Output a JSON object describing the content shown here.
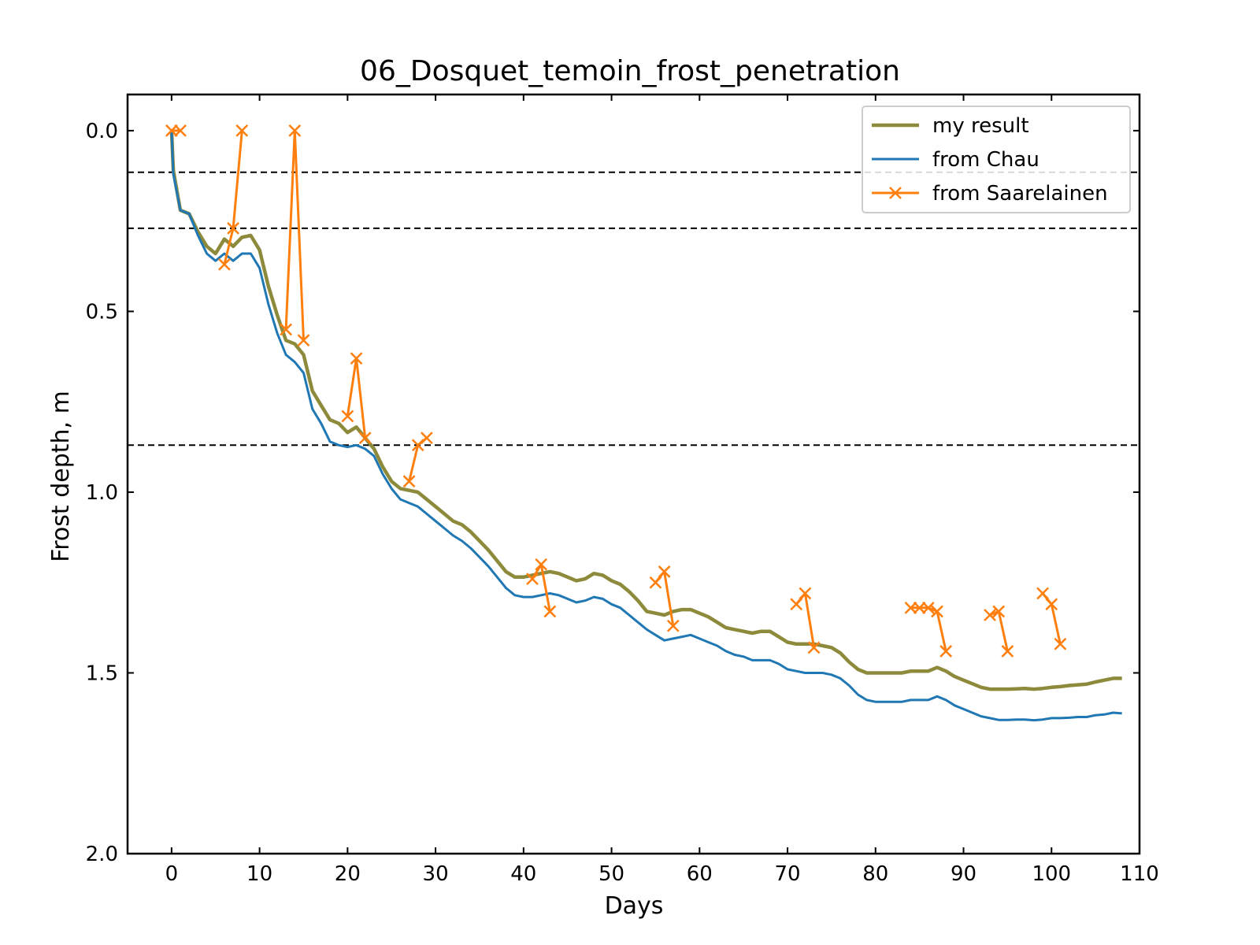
{
  "chart_data": {
    "type": "line",
    "title": "06_Dosquet_temoin_frost_penetration",
    "xlabel": "Days",
    "ylabel": "Frost depth, m",
    "xlim": [
      -5,
      110
    ],
    "ylim": [
      2.0,
      -0.1
    ],
    "y_inverted": true,
    "xticks": [
      0,
      10,
      20,
      30,
      40,
      50,
      60,
      70,
      80,
      90,
      100,
      110
    ],
    "yticks": [
      0.0,
      0.5,
      1.0,
      1.5,
      2.0
    ],
    "xtick_labels": [
      "0",
      "10",
      "20",
      "30",
      "40",
      "50",
      "60",
      "70",
      "80",
      "90",
      "100",
      "110"
    ],
    "ytick_labels": [
      "0.0",
      "0.5",
      "1.0",
      "1.5",
      "2.0"
    ],
    "grid": false,
    "legend_position": "top-right",
    "reference_lines": [
      0.115,
      0.27,
      0.87
    ],
    "series": [
      {
        "name": "my result",
        "color": "#8e8a3c",
        "marker": "none",
        "x": [
          0,
          0.2,
          1,
          2,
          3,
          4,
          5,
          6,
          7,
          8,
          9,
          10,
          11,
          12,
          13,
          14,
          15,
          16,
          17,
          18,
          19,
          20,
          21,
          22,
          23,
          24,
          25,
          26,
          27,
          28,
          29,
          30,
          31,
          32,
          33,
          34,
          35,
          36,
          37,
          38,
          39,
          40,
          41,
          42,
          43,
          44,
          45,
          46,
          47,
          48,
          49,
          50,
          51,
          52,
          53,
          54,
          55,
          56,
          57,
          58,
          59,
          60,
          61,
          62,
          63,
          64,
          65,
          66,
          67,
          68,
          69,
          70,
          71,
          72,
          73,
          74,
          75,
          76,
          77,
          78,
          79,
          80,
          81,
          82,
          83,
          84,
          85,
          86,
          87,
          88,
          89,
          90,
          91,
          92,
          93,
          94,
          95,
          96,
          97,
          98,
          99,
          100,
          101,
          102,
          103,
          104,
          105,
          106,
          107,
          108
        ],
        "y": [
          0.0,
          0.11,
          0.22,
          0.23,
          0.28,
          0.32,
          0.34,
          0.3,
          0.32,
          0.295,
          0.29,
          0.33,
          0.43,
          0.51,
          0.58,
          0.59,
          0.62,
          0.72,
          0.76,
          0.8,
          0.81,
          0.835,
          0.82,
          0.85,
          0.88,
          0.93,
          0.97,
          0.99,
          0.995,
          1.0,
          1.02,
          1.04,
          1.06,
          1.08,
          1.09,
          1.11,
          1.135,
          1.16,
          1.19,
          1.22,
          1.235,
          1.235,
          1.23,
          1.225,
          1.22,
          1.225,
          1.235,
          1.245,
          1.24,
          1.225,
          1.23,
          1.245,
          1.255,
          1.275,
          1.3,
          1.33,
          1.335,
          1.34,
          1.33,
          1.325,
          1.325,
          1.335,
          1.345,
          1.36,
          1.375,
          1.38,
          1.385,
          1.39,
          1.385,
          1.385,
          1.4,
          1.415,
          1.42,
          1.42,
          1.42,
          1.425,
          1.43,
          1.445,
          1.47,
          1.49,
          1.5,
          1.5,
          1.5,
          1.5,
          1.5,
          1.495,
          1.495,
          1.495,
          1.485,
          1.495,
          1.51,
          1.52,
          1.53,
          1.54,
          1.545,
          1.545,
          1.545,
          1.544,
          1.543,
          1.545,
          1.543,
          1.54,
          1.538,
          1.535,
          1.533,
          1.531,
          1.525,
          1.52,
          1.515,
          1.515
        ]
      },
      {
        "name": "from Chau",
        "color": "#1f77b4",
        "marker": "none",
        "x": [
          0,
          0.2,
          1,
          2,
          3,
          4,
          5,
          6,
          7,
          8,
          9,
          10,
          11,
          12,
          13,
          14,
          15,
          16,
          17,
          18,
          19,
          20,
          21,
          22,
          23,
          24,
          25,
          26,
          27,
          28,
          29,
          30,
          31,
          32,
          33,
          34,
          35,
          36,
          37,
          38,
          39,
          40,
          41,
          42,
          43,
          44,
          45,
          46,
          47,
          48,
          49,
          50,
          51,
          52,
          53,
          54,
          55,
          56,
          57,
          58,
          59,
          60,
          61,
          62,
          63,
          64,
          65,
          66,
          67,
          68,
          69,
          70,
          71,
          72,
          73,
          74,
          75,
          76,
          77,
          78,
          79,
          80,
          81,
          82,
          83,
          84,
          85,
          86,
          87,
          88,
          89,
          90,
          91,
          92,
          93,
          94,
          95,
          96,
          97,
          98,
          99,
          100,
          101,
          102,
          103,
          104,
          105,
          106,
          107,
          108
        ],
        "y": [
          0.0,
          0.12,
          0.22,
          0.23,
          0.29,
          0.34,
          0.36,
          0.34,
          0.36,
          0.34,
          0.34,
          0.38,
          0.48,
          0.56,
          0.62,
          0.64,
          0.67,
          0.77,
          0.81,
          0.86,
          0.87,
          0.875,
          0.87,
          0.88,
          0.9,
          0.95,
          0.99,
          1.02,
          1.03,
          1.04,
          1.06,
          1.08,
          1.1,
          1.12,
          1.135,
          1.155,
          1.18,
          1.205,
          1.235,
          1.265,
          1.285,
          1.29,
          1.29,
          1.285,
          1.28,
          1.285,
          1.295,
          1.305,
          1.3,
          1.29,
          1.295,
          1.31,
          1.32,
          1.34,
          1.36,
          1.38,
          1.395,
          1.41,
          1.405,
          1.4,
          1.395,
          1.405,
          1.415,
          1.425,
          1.44,
          1.45,
          1.455,
          1.465,
          1.465,
          1.465,
          1.475,
          1.49,
          1.495,
          1.5,
          1.5,
          1.5,
          1.505,
          1.515,
          1.535,
          1.56,
          1.575,
          1.58,
          1.58,
          1.58,
          1.58,
          1.575,
          1.575,
          1.575,
          1.565,
          1.575,
          1.59,
          1.6,
          1.61,
          1.62,
          1.625,
          1.63,
          1.63,
          1.629,
          1.629,
          1.631,
          1.629,
          1.625,
          1.625,
          1.624,
          1.622,
          1.622,
          1.617,
          1.615,
          1.61,
          1.612
        ]
      },
      {
        "name": "from Saarelainen",
        "color": "#ff7f0e",
        "marker": "x",
        "segments": [
          {
            "x": [
              0,
              1
            ],
            "y": [
              0.0,
              0.0
            ]
          },
          {
            "x": [
              6,
              7,
              8
            ],
            "y": [
              0.37,
              0.27,
              0.0
            ]
          },
          {
            "x": [
              13,
              14,
              15
            ],
            "y": [
              0.55,
              0.0,
              0.58
            ]
          },
          {
            "x": [
              20,
              21,
              22
            ],
            "y": [
              0.79,
              0.63,
              0.85
            ]
          },
          {
            "x": [
              27,
              28,
              29
            ],
            "y": [
              0.97,
              0.87,
              0.85
            ]
          },
          {
            "x": [
              41,
              42,
              43
            ],
            "y": [
              1.24,
              1.2,
              1.33
            ]
          },
          {
            "x": [
              55,
              56,
              57
            ],
            "y": [
              1.25,
              1.22,
              1.37
            ]
          },
          {
            "x": [
              71,
              72,
              73
            ],
            "y": [
              1.31,
              1.28,
              1.43
            ]
          },
          {
            "x": [
              84,
              85,
              86,
              87,
              88
            ],
            "y": [
              1.32,
              1.32,
              1.32,
              1.33,
              1.44
            ]
          },
          {
            "x": [
              93,
              94,
              95
            ],
            "y": [
              1.34,
              1.33,
              1.44
            ]
          },
          {
            "x": [
              99,
              100,
              101
            ],
            "y": [
              1.28,
              1.31,
              1.42
            ]
          }
        ]
      }
    ]
  }
}
